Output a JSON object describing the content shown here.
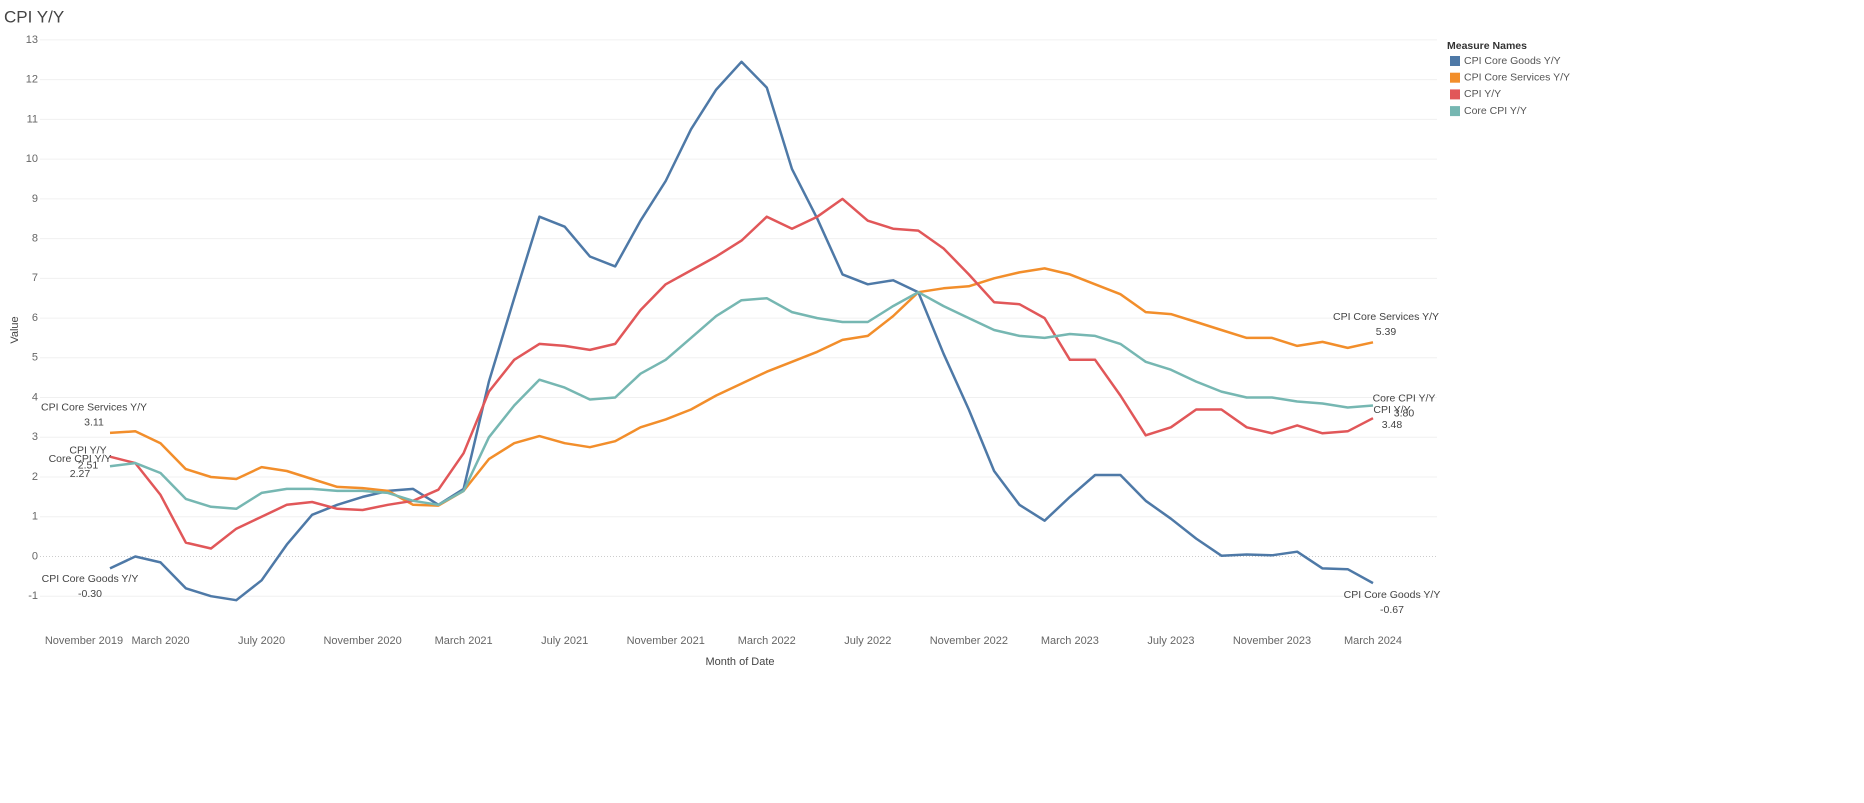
{
  "chart_data": {
    "type": "line",
    "title": "CPI Y/Y",
    "x_label": "Month of Date",
    "y_label": "Value",
    "legend_title": "Measure Names",
    "legend_position": "top-right",
    "grid": true,
    "categories": [
      "November 2019",
      null,
      null,
      null,
      "March 2020",
      null,
      null,
      null,
      "July 2020",
      null,
      null,
      null,
      "November 2020",
      null,
      null,
      null,
      "March 2021",
      null,
      null,
      null,
      "July 2021",
      null,
      null,
      null,
      "November 2021",
      null,
      null,
      null,
      "March 2022",
      null,
      null,
      null,
      "July 2022",
      null,
      null,
      null,
      "November 2022",
      null,
      null,
      null,
      "March 2023",
      null,
      null,
      null,
      "July 2023",
      null,
      null,
      null,
      "November 2023",
      null,
      null,
      null,
      "March 2024"
    ],
    "ylim": [
      -1.8,
      13.3
    ],
    "yticks": [
      -1,
      0,
      1,
      2,
      3,
      4,
      5,
      6,
      7,
      8,
      9,
      10,
      11,
      12,
      13
    ],
    "series": [
      {
        "name": "CPI Core Goods Y/Y",
        "color": "#4e79a7",
        "values": [
          null,
          null,
          -0.3,
          0.0,
          -0.15,
          -0.8,
          -1.0,
          -1.1,
          -0.6,
          0.3,
          1.05,
          1.3,
          1.5,
          1.65,
          1.7,
          1.3,
          1.7,
          4.4,
          6.5,
          8.55,
          8.3,
          7.55,
          7.3,
          8.45,
          9.45,
          10.75,
          11.75,
          12.45,
          11.8,
          9.75,
          8.5,
          7.1,
          6.85,
          6.95,
          6.65,
          5.1,
          3.7,
          2.15,
          1.3,
          0.9,
          1.5,
          2.05,
          2.05,
          1.4,
          0.95,
          0.45,
          0.02,
          0.05,
          0.03,
          0.12,
          -0.3,
          -0.32,
          -0.67
        ],
        "value_labels": [
          null,
          null,
          "-0.30",
          null,
          null,
          null,
          null,
          null,
          null,
          null,
          null,
          null,
          null,
          null,
          null,
          null,
          null,
          null,
          null,
          null,
          null,
          null,
          null,
          null,
          null,
          null,
          null,
          null,
          null,
          null,
          null,
          null,
          null,
          null,
          null,
          null,
          null,
          null,
          null,
          null,
          null,
          null,
          null,
          null,
          null,
          null,
          null,
          null,
          null,
          null,
          null,
          null,
          "-0.67"
        ]
      },
      {
        "name": "CPI Core Services Y/Y",
        "color": "#f28e2b",
        "values": [
          null,
          null,
          3.11,
          3.15,
          2.85,
          2.2,
          2.0,
          1.95,
          2.25,
          2.15,
          1.95,
          1.75,
          1.72,
          1.65,
          1.3,
          1.28,
          1.65,
          2.45,
          2.85,
          3.03,
          2.85,
          2.75,
          2.9,
          3.25,
          3.45,
          3.7,
          4.05,
          4.35,
          4.65,
          4.9,
          5.15,
          5.45,
          5.55,
          6.05,
          6.65,
          6.75,
          6.8,
          7.0,
          7.15,
          7.25,
          7.1,
          6.85,
          6.6,
          6.15,
          6.1,
          5.9,
          5.7,
          5.5,
          5.5,
          5.3,
          5.4,
          5.25,
          5.39
        ],
        "value_labels": [
          null,
          null,
          "3.11",
          null,
          null,
          null,
          null,
          null,
          null,
          null,
          null,
          null,
          null,
          null,
          null,
          null,
          null,
          null,
          null,
          null,
          null,
          null,
          null,
          null,
          null,
          null,
          null,
          null,
          null,
          null,
          null,
          null,
          null,
          null,
          null,
          null,
          null,
          null,
          null,
          null,
          null,
          null,
          null,
          null,
          null,
          null,
          null,
          null,
          null,
          null,
          null,
          null,
          "5.39"
        ]
      },
      {
        "name": "CPI Y/Y",
        "color": "#e15759",
        "values": [
          null,
          null,
          2.51,
          2.35,
          1.55,
          0.35,
          0.2,
          0.7,
          1.0,
          1.3,
          1.37,
          1.2,
          1.17,
          1.3,
          1.4,
          1.68,
          2.6,
          4.15,
          4.95,
          5.35,
          5.3,
          5.2,
          5.35,
          6.2,
          6.85,
          7.2,
          7.55,
          7.95,
          8.55,
          8.25,
          8.55,
          9.0,
          8.45,
          8.25,
          8.2,
          7.75,
          7.1,
          6.4,
          6.35,
          6.0,
          4.95,
          4.95,
          4.05,
          3.05,
          3.25,
          3.7,
          3.7,
          3.25,
          3.1,
          3.3,
          3.1,
          3.15,
          3.48
        ],
        "value_labels": [
          null,
          null,
          "2.51",
          null,
          null,
          null,
          null,
          null,
          null,
          null,
          null,
          null,
          null,
          null,
          null,
          null,
          null,
          null,
          null,
          null,
          null,
          null,
          null,
          null,
          null,
          null,
          null,
          null,
          null,
          null,
          null,
          null,
          null,
          null,
          null,
          null,
          null,
          null,
          null,
          null,
          null,
          null,
          null,
          null,
          null,
          null,
          null,
          null,
          null,
          null,
          null,
          null,
          "3.48"
        ]
      },
      {
        "name": "Core CPI Y/Y",
        "color": "#76b7b2",
        "values": [
          null,
          null,
          2.27,
          2.35,
          2.1,
          1.45,
          1.25,
          1.2,
          1.6,
          1.7,
          1.7,
          1.65,
          1.65,
          1.6,
          1.4,
          1.3,
          1.65,
          3.0,
          3.8,
          4.45,
          4.25,
          3.95,
          4.0,
          4.6,
          4.95,
          5.5,
          6.05,
          6.45,
          6.5,
          6.15,
          6.0,
          5.9,
          5.9,
          6.3,
          6.65,
          6.3,
          6.0,
          5.7,
          5.55,
          5.5,
          5.6,
          5.55,
          5.35,
          4.9,
          4.7,
          4.4,
          4.15,
          4.0,
          4.0,
          3.9,
          3.85,
          3.75,
          3.8
        ],
        "value_labels": [
          null,
          null,
          "2.27",
          null,
          null,
          null,
          null,
          null,
          null,
          null,
          null,
          null,
          null,
          null,
          null,
          null,
          null,
          null,
          null,
          null,
          null,
          null,
          null,
          null,
          null,
          null,
          null,
          null,
          null,
          null,
          null,
          null,
          null,
          null,
          null,
          null,
          null,
          null,
          null,
          null,
          null,
          null,
          null,
          null,
          null,
          null,
          null,
          null,
          null,
          null,
          null,
          null,
          "3.80"
        ]
      }
    ]
  }
}
